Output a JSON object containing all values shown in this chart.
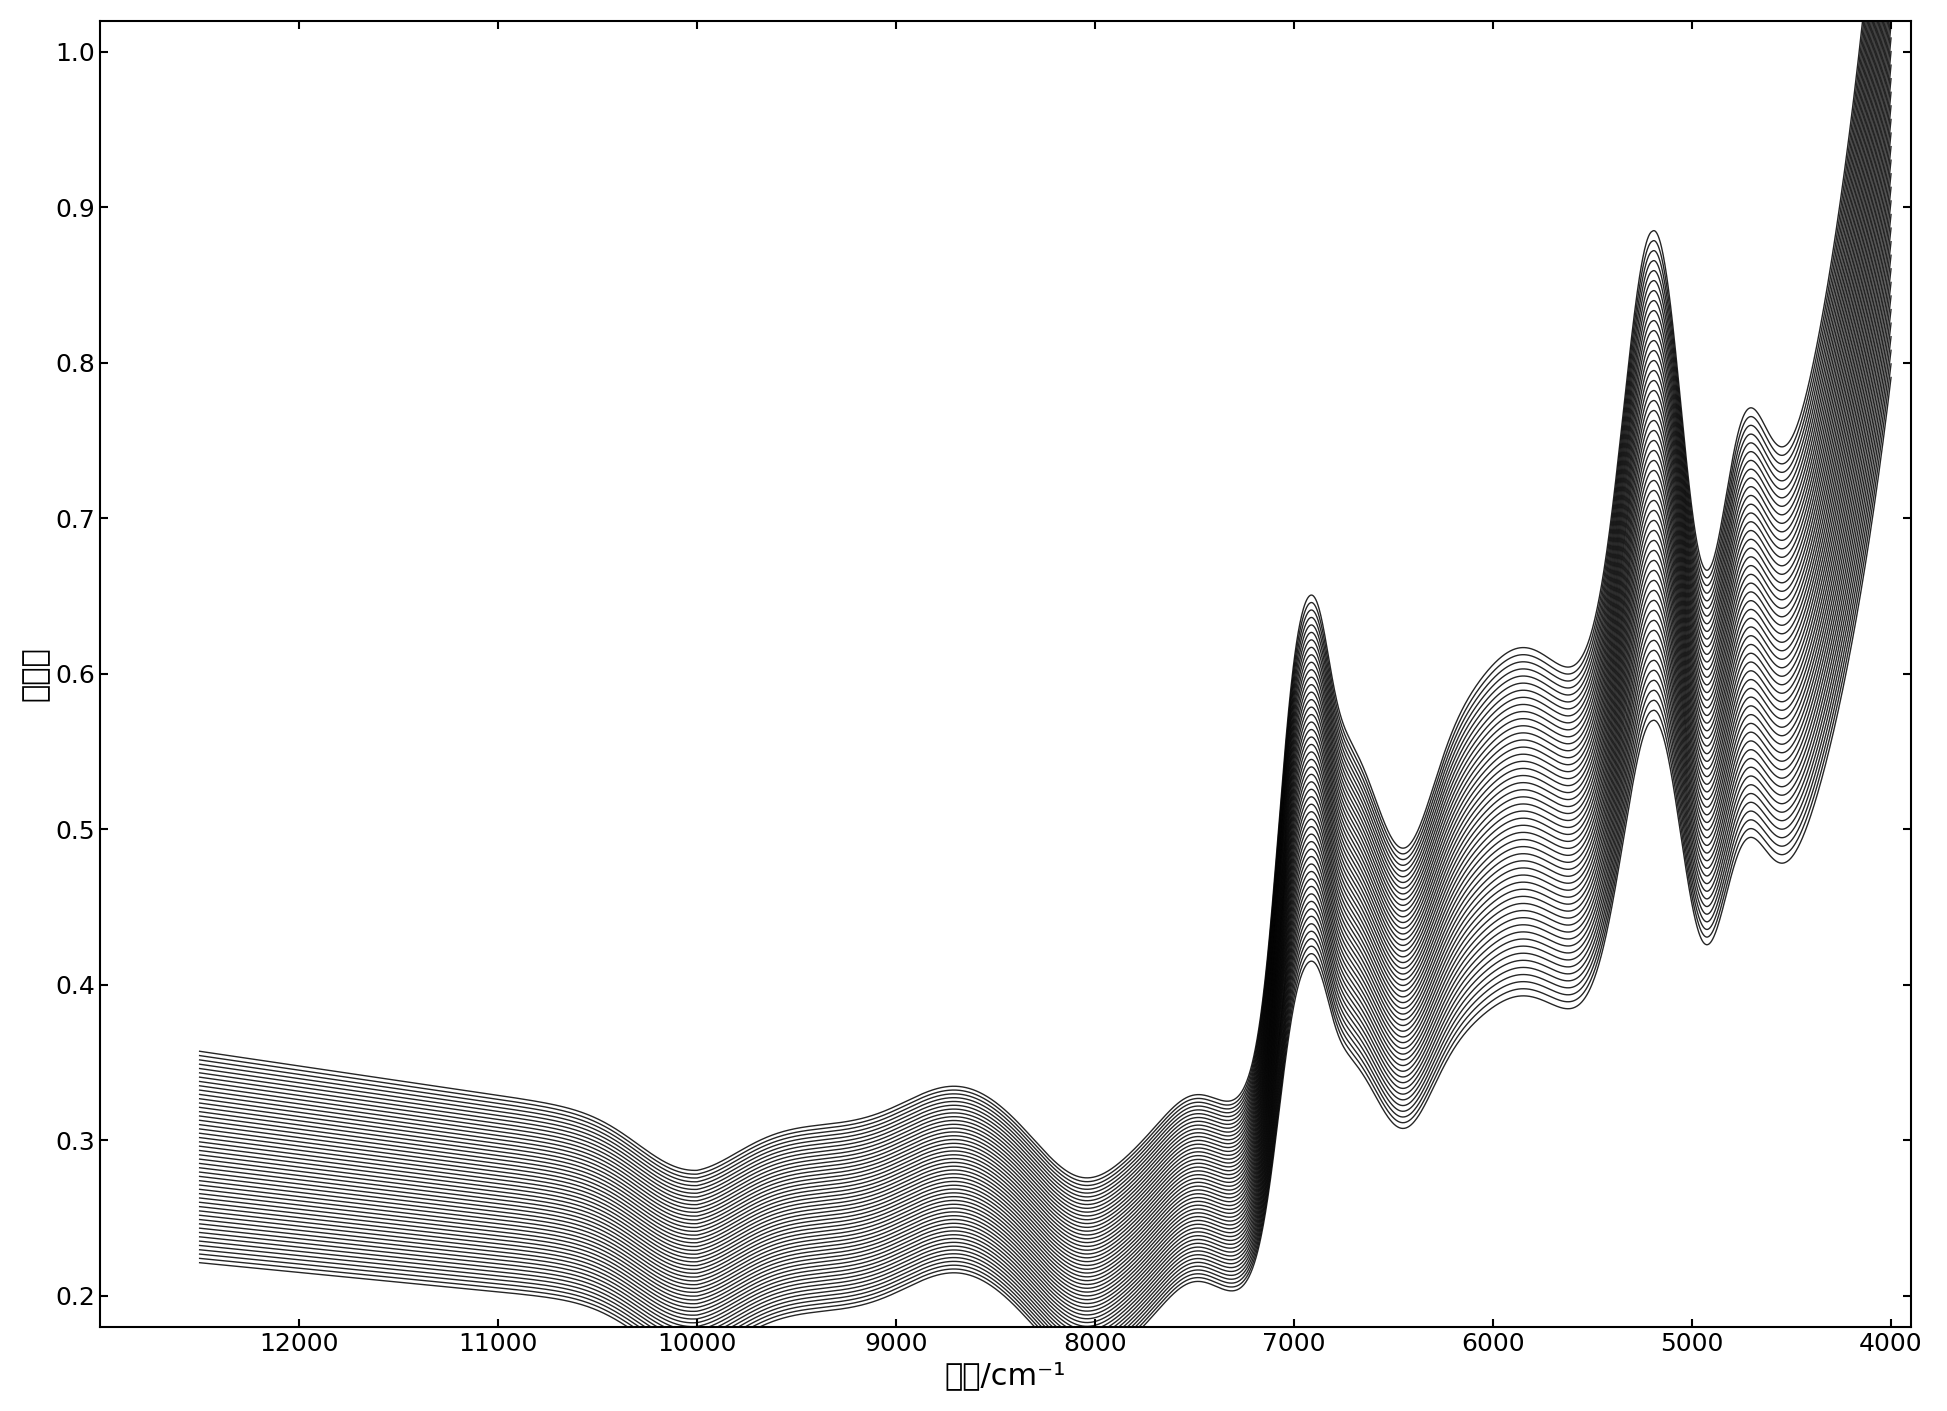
{
  "xlabel": "波数/cm⁻¹",
  "ylabel": "吸光度",
  "x_min": 4000,
  "x_max": 12500,
  "y_min": 0.18,
  "y_max": 1.02,
  "yticks": [
    0.2,
    0.3,
    0.4,
    0.5,
    0.6,
    0.7,
    0.8,
    0.9,
    1.0
  ],
  "xticks": [
    12000,
    11000,
    10000,
    9000,
    8000,
    7000,
    6000,
    5000,
    4000
  ],
  "n_spectra": 50,
  "line_color": "#000000",
  "line_alpha": 0.85,
  "line_width": 1.0,
  "background_color": "#ffffff",
  "xlabel_fontsize": 22,
  "ylabel_fontsize": 22,
  "tick_fontsize": 18
}
